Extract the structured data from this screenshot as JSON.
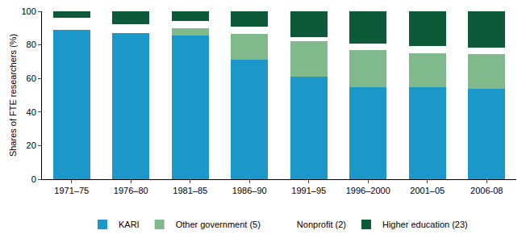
{
  "chart_data": {
    "type": "bar",
    "stacked": true,
    "y_label": "Shares of FTE researchers (%)",
    "categories": [
      "1971–75",
      "1976–80",
      "1981–85",
      "1986–90",
      "1991–95",
      "1996–2000",
      "2001–05",
      "2006-08"
    ],
    "series": [
      {
        "name": "KARI",
        "color": "#1b97c9",
        "values": [
          89,
          87,
          85.5,
          71,
          61,
          55,
          55,
          54
        ]
      },
      {
        "name": "Other government (5)",
        "color": "#80b98b",
        "values": [
          0,
          0,
          4.5,
          15.5,
          21,
          22,
          20,
          20.5
        ]
      },
      {
        "name": "Nonprofit (2)",
        "color": "#ffffff",
        "values": [
          7,
          5.5,
          4,
          4.5,
          2.5,
          4,
          4.5,
          4
        ]
      },
      {
        "name": "Higher education (23)",
        "color": "#0c5a3a",
        "values": [
          4,
          7.5,
          6,
          9,
          15.5,
          19,
          20.5,
          21.5
        ]
      }
    ],
    "ylim": [
      0,
      100
    ],
    "yticks": [
      0,
      20,
      40,
      60,
      80,
      100
    ],
    "grid": false,
    "legend": "bottom"
  }
}
